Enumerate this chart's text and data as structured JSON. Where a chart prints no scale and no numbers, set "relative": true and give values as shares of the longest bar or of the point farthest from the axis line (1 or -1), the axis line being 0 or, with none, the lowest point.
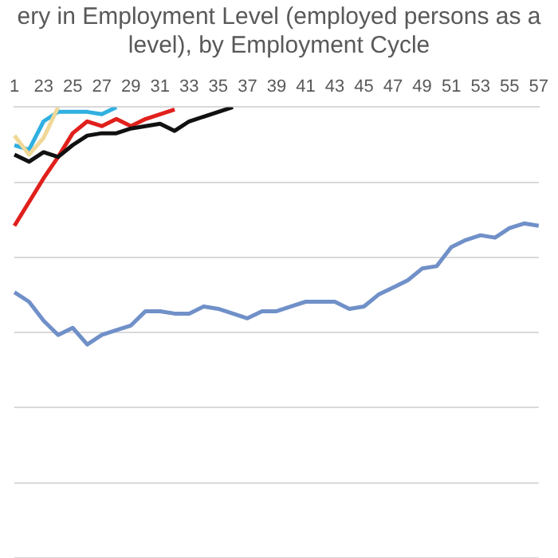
{
  "chart_data": {
    "type": "line",
    "title": "ery in Employment Level (employed persons as a level), by Employment Cycle",
    "relative": true,
    "grid": "y",
    "legend": false,
    "marker": "none",
    "line_style": "solid",
    "categories": [
      "1",
      null,
      "23",
      null,
      "25",
      null,
      "27",
      null,
      "29",
      null,
      "31",
      null,
      "33",
      null,
      "35",
      null,
      "37",
      null,
      "39",
      null,
      "41",
      null,
      "43",
      null,
      "45",
      null,
      "47",
      null,
      "49",
      null,
      "51",
      null,
      "53",
      null,
      "55",
      null,
      "57"
    ],
    "series": [
      {
        "color": "#7090c8",
        "values": [
          -0.78,
          -0.82,
          -0.9,
          -0.96,
          -0.93,
          -1,
          -0.96,
          -0.94,
          -0.92,
          -0.86,
          -0.86,
          -0.87,
          -0.87,
          -0.84,
          -0.85,
          -0.87,
          -0.89,
          -0.86,
          -0.86,
          -0.84,
          -0.82,
          -0.82,
          -0.82,
          -0.85,
          -0.84,
          -0.79,
          -0.76,
          -0.73,
          -0.68,
          -0.67,
          -0.59,
          -0.56,
          -0.54,
          -0.55,
          -0.51,
          -0.49,
          -0.5
        ]
      },
      {
        "color": "#f0d898",
        "values": [
          -0.12,
          -0.2,
          -0.13,
          0,
          null,
          null,
          null,
          null,
          null,
          null,
          null,
          null,
          null,
          null,
          null,
          null,
          null,
          null,
          null,
          null,
          null,
          null,
          null,
          null,
          null,
          null,
          null,
          null,
          null,
          null,
          null,
          null,
          null,
          null,
          null,
          null,
          null
        ]
      },
      {
        "color": "#30b0e0",
        "values": [
          -0.16,
          -0.18,
          -0.06,
          -0.02,
          -0.02,
          -0.02,
          -0.03,
          0,
          null,
          null,
          null,
          null,
          null,
          null,
          null,
          null,
          null,
          null,
          null,
          null,
          null,
          null,
          null,
          null,
          null,
          null,
          null,
          null,
          null,
          null,
          null,
          null,
          null,
          null,
          null,
          null,
          null
        ]
      },
      {
        "color": "#111111",
        "values": [
          -0.2,
          -0.23,
          -0.19,
          -0.21,
          -0.16,
          -0.12,
          -0.11,
          -0.11,
          -0.09,
          -0.08,
          -0.07,
          -0.1,
          -0.06,
          -0.04,
          -0.02,
          0,
          null,
          null,
          null,
          null,
          null,
          null,
          null,
          null,
          null,
          null,
          null,
          null,
          null,
          null,
          null,
          null,
          null,
          null,
          null,
          null,
          null
        ]
      },
      {
        "color": "#e0201c",
        "values": [
          -0.5,
          -0.4,
          -0.3,
          -0.21,
          -0.11,
          -0.06,
          -0.08,
          -0.05,
          -0.08,
          -0.05,
          -0.03,
          -0.01,
          null,
          null,
          null,
          null,
          null,
          null,
          null,
          null,
          null,
          null,
          null,
          null,
          null,
          null,
          null,
          null,
          null,
          null,
          null,
          null,
          null,
          null,
          null,
          null,
          null
        ]
      }
    ]
  }
}
